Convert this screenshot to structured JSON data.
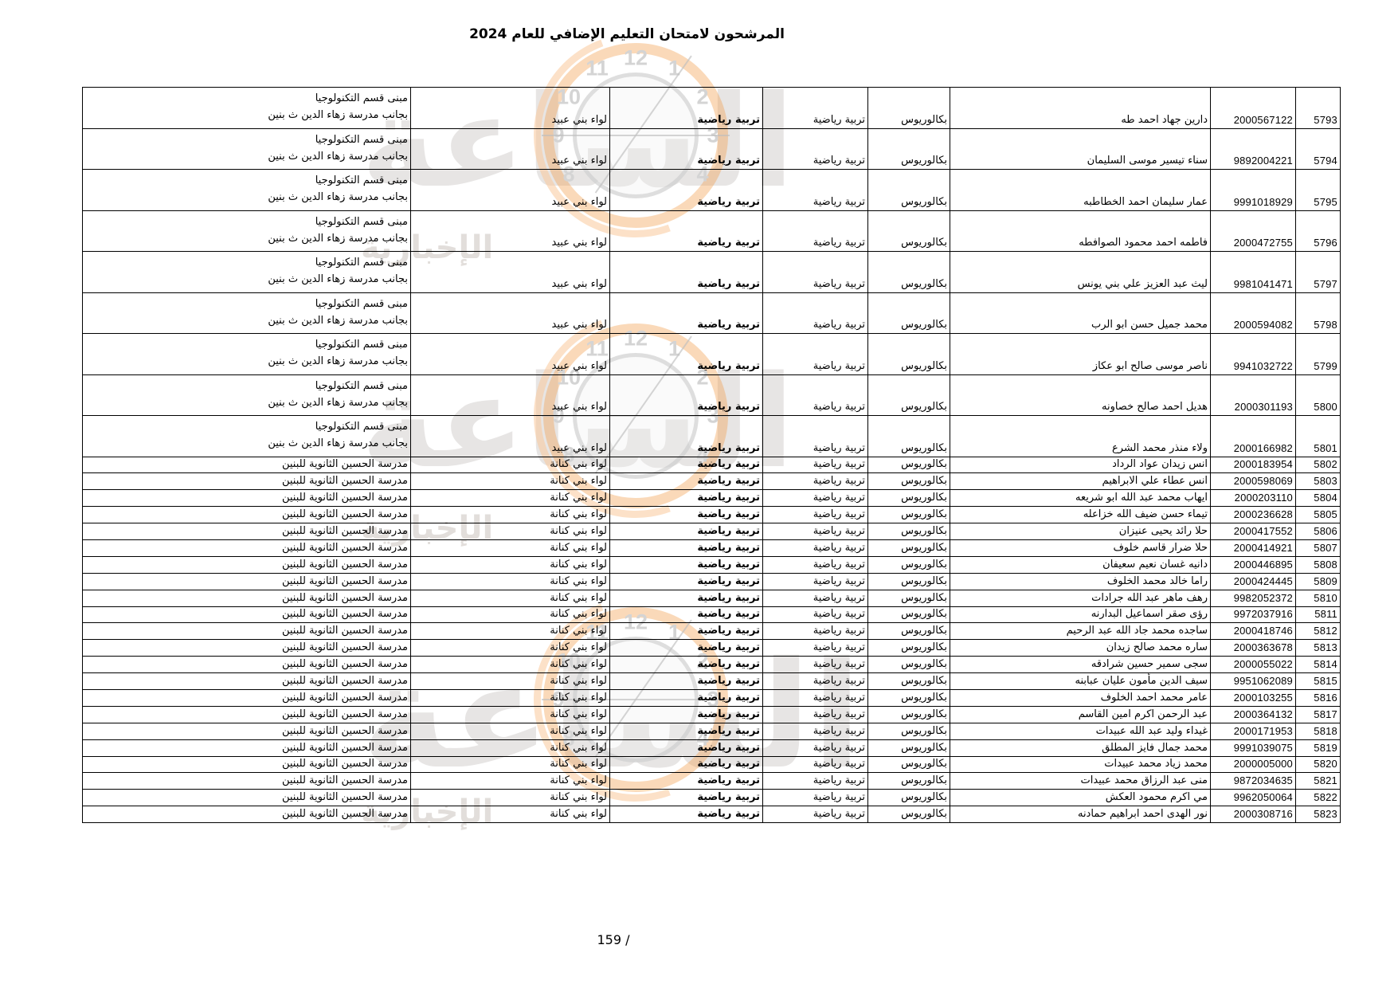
{
  "title": "المرشحون لامتحان التعليم الإضافي للعام 2024",
  "page_number": "159 /",
  "watermark": {
    "brand_top": "الإخبارية",
    "brand_main": "الساعة",
    "clock_numbers": [
      "12",
      "1",
      "2",
      "3",
      "4",
      "8",
      "9",
      "10",
      "11"
    ],
    "orange_hex": "#f3a050",
    "gray_hex": "#d4d4d4"
  },
  "table": {
    "columns": [
      "serial",
      "national_id",
      "name",
      "qualification",
      "specialization",
      "exam_subject",
      "directorate",
      "exam_center"
    ],
    "shared": {
      "qualification": "بكالوريوس",
      "specialization": "تربية رياضية",
      "exam_subject": "تربية رياضية",
      "directorate_tall": "لواء بني عبيد",
      "directorate_short": "لواء بني كنانة",
      "center_tall_line1": "مبنى قسم التكنولوجيا",
      "center_tall_line2": "بجانب مدرسة زهاء الدين ث بنين",
      "center_short": "مدرسة الحسين الثانوية للبنين"
    },
    "rows": [
      {
        "serial": "5793",
        "national_id": "2000567122",
        "name": "دارين جهاد احمد طه",
        "qualification": "بكالوريوس",
        "specialization": "تربية رياضية",
        "exam_subject": "تربية رياضية",
        "directorate": "لواء بني عبيد",
        "center_lines": [
          "مبنى قسم التكنولوجيا",
          "بجانب مدرسة زهاء الدين ث بنين"
        ]
      },
      {
        "serial": "5794",
        "national_id": "9892004221",
        "name": "سناء تيسير موسى السليمان",
        "qualification": "بكالوريوس",
        "specialization": "تربية رياضية",
        "exam_subject": "تربية رياضية",
        "directorate": "لواء بني عبيد",
        "center_lines": [
          "مبنى قسم التكنولوجيا",
          "بجانب مدرسة زهاء الدين ث بنين"
        ]
      },
      {
        "serial": "5795",
        "national_id": "9991018929",
        "name": "عمار سليمان احمد الخطاطبه",
        "qualification": "بكالوريوس",
        "specialization": "تربية رياضية",
        "exam_subject": "تربية رياضية",
        "directorate": "لواء بني عبيد",
        "center_lines": [
          "مبنى قسم التكنولوجيا",
          "بجانب مدرسة زهاء الدين ث بنين"
        ]
      },
      {
        "serial": "5796",
        "national_id": "2000472755",
        "name": "فاطمه احمد محمود الصوافطه",
        "qualification": "بكالوريوس",
        "specialization": "تربية رياضية",
        "exam_subject": "تربية رياضية",
        "directorate": "لواء بني عبيد",
        "center_lines": [
          "مبنى قسم التكنولوجيا",
          "بجانب مدرسة زهاء الدين ث بنين"
        ]
      },
      {
        "serial": "5797",
        "national_id": "9981041471",
        "name": "ليث عبد العزيز علي بني يونس",
        "qualification": "بكالوريوس",
        "specialization": "تربية رياضية",
        "exam_subject": "تربية رياضية",
        "directorate": "لواء بني عبيد",
        "center_lines": [
          "مبنى قسم التكنولوجيا",
          "بجانب مدرسة زهاء الدين ث بنين"
        ]
      },
      {
        "serial": "5798",
        "national_id": "2000594082",
        "name": "محمد جميل حسن ابو الرب",
        "qualification": "بكالوريوس",
        "specialization": "تربية رياضية",
        "exam_subject": "تربية رياضية",
        "directorate": "لواء بني عبيد",
        "center_lines": [
          "مبنى قسم التكنولوجيا",
          "بجانب مدرسة زهاء الدين ث بنين"
        ]
      },
      {
        "serial": "5799",
        "national_id": "9941032722",
        "name": "ناصر موسى صالح ابو عكاز",
        "qualification": "بكالوريوس",
        "specialization": "تربية رياضية",
        "exam_subject": "تربية رياضية",
        "directorate": "لواء بني عبيد",
        "center_lines": [
          "مبنى قسم التكنولوجيا",
          "بجانب مدرسة زهاء الدين ث بنين"
        ]
      },
      {
        "serial": "5800",
        "national_id": "2000301193",
        "name": "هديل احمد صالح خصاونه",
        "qualification": "بكالوريوس",
        "specialization": "تربية رياضية",
        "exam_subject": "تربية رياضية",
        "directorate": "لواء بني عبيد",
        "center_lines": [
          "مبنى قسم التكنولوجيا",
          "بجانب مدرسة زهاء الدين ث بنين"
        ]
      },
      {
        "serial": "5801",
        "national_id": "2000166982",
        "name": "ولاء منذر محمد الشرع",
        "qualification": "بكالوريوس",
        "specialization": "تربية رياضية",
        "exam_subject": "تربية رياضية",
        "directorate": "لواء بني عبيد",
        "center_lines": [
          "مبنى قسم التكنولوجيا",
          "بجانب مدرسة زهاء الدين ث بنين"
        ]
      },
      {
        "serial": "5802",
        "national_id": "2000183954",
        "name": "انس زيدان عواد الرداد",
        "qualification": "بكالوريوس",
        "specialization": "تربية رياضية",
        "exam_subject": "تربية رياضية",
        "directorate": "لواء بني كنانة",
        "center_lines": [
          "مدرسة الحسين الثانوية للبنين"
        ]
      },
      {
        "serial": "5803",
        "national_id": "2000598069",
        "name": "انس عطاء علي الابراهيم",
        "qualification": "بكالوريوس",
        "specialization": "تربية رياضية",
        "exam_subject": "تربية رياضية",
        "directorate": "لواء بني كنانة",
        "center_lines": [
          "مدرسة الحسين الثانوية للبنين"
        ]
      },
      {
        "serial": "5804",
        "national_id": "2000203110",
        "name": "ايهاب محمد عبد الله ابو شريعه",
        "qualification": "بكالوريوس",
        "specialization": "تربية رياضية",
        "exam_subject": "تربية رياضية",
        "directorate": "لواء بني كنانة",
        "center_lines": [
          "مدرسة الحسين الثانوية للبنين"
        ]
      },
      {
        "serial": "5805",
        "national_id": "2000236628",
        "name": "تيماء حسن ضيف الله خزاعله",
        "qualification": "بكالوريوس",
        "specialization": "تربية رياضية",
        "exam_subject": "تربية رياضية",
        "directorate": "لواء بني كنانة",
        "center_lines": [
          "مدرسة الحسين الثانوية للبنين"
        ]
      },
      {
        "serial": "5806",
        "national_id": "2000417552",
        "name": "حلا رائد يحيى عنيزان",
        "qualification": "بكالوريوس",
        "specialization": "تربية رياضية",
        "exam_subject": "تربية رياضية",
        "directorate": "لواء بني كنانة",
        "center_lines": [
          "مدرسة الحسين الثانوية للبنين"
        ]
      },
      {
        "serial": "5807",
        "national_id": "2000414921",
        "name": "حلا ضرار قاسم خلوف",
        "qualification": "بكالوريوس",
        "specialization": "تربية رياضية",
        "exam_subject": "تربية رياضية",
        "directorate": "لواء بني كنانة",
        "center_lines": [
          "مدرسة الحسين الثانوية للبنين"
        ]
      },
      {
        "serial": "5808",
        "national_id": "2000446895",
        "name": "دانيه غسان نعيم سعيفان",
        "qualification": "بكالوريوس",
        "specialization": "تربية رياضية",
        "exam_subject": "تربية رياضية",
        "directorate": "لواء بني كنانة",
        "center_lines": [
          "مدرسة الحسين الثانوية للبنين"
        ]
      },
      {
        "serial": "5809",
        "national_id": "2000424445",
        "name": "راما خالد محمد الخلوف",
        "qualification": "بكالوريوس",
        "specialization": "تربية رياضية",
        "exam_subject": "تربية رياضية",
        "directorate": "لواء بني كنانة",
        "center_lines": [
          "مدرسة الحسين الثانوية للبنين"
        ]
      },
      {
        "serial": "5810",
        "national_id": "9982052372",
        "name": "رهف ماهر عبد الله جرادات",
        "qualification": "بكالوريوس",
        "specialization": "تربية رياضية",
        "exam_subject": "تربية رياضية",
        "directorate": "لواء بني كنانة",
        "center_lines": [
          "مدرسة الحسين الثانوية للبنين"
        ]
      },
      {
        "serial": "5811",
        "national_id": "9972037916",
        "name": "رؤى صقر اسماعيل البدارنه",
        "qualification": "بكالوريوس",
        "specialization": "تربية رياضية",
        "exam_subject": "تربية رياضية",
        "directorate": "لواء بني كنانة",
        "center_lines": [
          "مدرسة الحسين الثانوية للبنين"
        ]
      },
      {
        "serial": "5812",
        "national_id": "2000418746",
        "name": "ساجده محمد جاد الله عبد الرحيم",
        "qualification": "بكالوريوس",
        "specialization": "تربية رياضية",
        "exam_subject": "تربية رياضية",
        "directorate": "لواء بني كنانة",
        "center_lines": [
          "مدرسة الحسين الثانوية للبنين"
        ]
      },
      {
        "serial": "5813",
        "national_id": "2000363678",
        "name": "ساره محمد صالح زيدان",
        "qualification": "بكالوريوس",
        "specialization": "تربية رياضية",
        "exam_subject": "تربية رياضية",
        "directorate": "لواء بني كنانة",
        "center_lines": [
          "مدرسة الحسين الثانوية للبنين"
        ]
      },
      {
        "serial": "5814",
        "national_id": "2000055022",
        "name": "سجى سمير حسين شرادقه",
        "qualification": "بكالوريوس",
        "specialization": "تربية رياضية",
        "exam_subject": "تربية رياضية",
        "directorate": "لواء بني كنانة",
        "center_lines": [
          "مدرسة الحسين الثانوية للبنين"
        ]
      },
      {
        "serial": "5815",
        "national_id": "9951062089",
        "name": "سيف الدين مأمون عليان عبابنه",
        "qualification": "بكالوريوس",
        "specialization": "تربية رياضية",
        "exam_subject": "تربية رياضية",
        "directorate": "لواء بني كنانة",
        "center_lines": [
          "مدرسة الحسين الثانوية للبنين"
        ]
      },
      {
        "serial": "5816",
        "national_id": "2000103255",
        "name": "عامر محمد احمد الخلوف",
        "qualification": "بكالوريوس",
        "specialization": "تربية رياضية",
        "exam_subject": "تربية رياضية",
        "directorate": "لواء بني كنانة",
        "center_lines": [
          "مدرسة الحسين الثانوية للبنين"
        ]
      },
      {
        "serial": "5817",
        "national_id": "2000364132",
        "name": "عبد الرحمن اكرم امين القاسم",
        "qualification": "بكالوريوس",
        "specialization": "تربية رياضية",
        "exam_subject": "تربية رياضية",
        "directorate": "لواء بني كنانة",
        "center_lines": [
          "مدرسة الحسين الثانوية للبنين"
        ]
      },
      {
        "serial": "5818",
        "national_id": "2000171953",
        "name": "غيداء وليد عبد الله عبيدات",
        "qualification": "بكالوريوس",
        "specialization": "تربية رياضية",
        "exam_subject": "تربية رياضية",
        "directorate": "لواء بني كنانة",
        "center_lines": [
          "مدرسة الحسين الثانوية للبنين"
        ]
      },
      {
        "serial": "5819",
        "national_id": "9991039075",
        "name": "محمد جمال فايز المطلق",
        "qualification": "بكالوريوس",
        "specialization": "تربية رياضية",
        "exam_subject": "تربية رياضية",
        "directorate": "لواء بني كنانة",
        "center_lines": [
          "مدرسة الحسين الثانوية للبنين"
        ]
      },
      {
        "serial": "5820",
        "national_id": "2000005000",
        "name": "محمد زياد محمد عبيدات",
        "qualification": "بكالوريوس",
        "specialization": "تربية رياضية",
        "exam_subject": "تربية رياضية",
        "directorate": "لواء بني كنانة",
        "center_lines": [
          "مدرسة الحسين الثانوية للبنين"
        ]
      },
      {
        "serial": "5821",
        "national_id": "9872034635",
        "name": "منى عبد الرزاق محمد عبيدات",
        "qualification": "بكالوريوس",
        "specialization": "تربية رياضية",
        "exam_subject": "تربية رياضية",
        "directorate": "لواء بني كنانة",
        "center_lines": [
          "مدرسة الحسين الثانوية للبنين"
        ]
      },
      {
        "serial": "5822",
        "national_id": "9962050064",
        "name": "مي اكرم محمود العكش",
        "qualification": "بكالوريوس",
        "specialization": "تربية رياضية",
        "exam_subject": "تربية رياضية",
        "directorate": "لواء بني كنانة",
        "center_lines": [
          "مدرسة الحسين الثانوية للبنين"
        ]
      },
      {
        "serial": "5823",
        "national_id": "2000308716",
        "name": "نور الهدى احمد ابراهيم حمادنه",
        "qualification": "بكالوريوس",
        "specialization": "تربية رياضية",
        "exam_subject": "تربية رياضية",
        "directorate": "لواء بني كنانة",
        "center_lines": [
          "مدرسة الحسين الثانوية للبنين"
        ]
      }
    ]
  }
}
